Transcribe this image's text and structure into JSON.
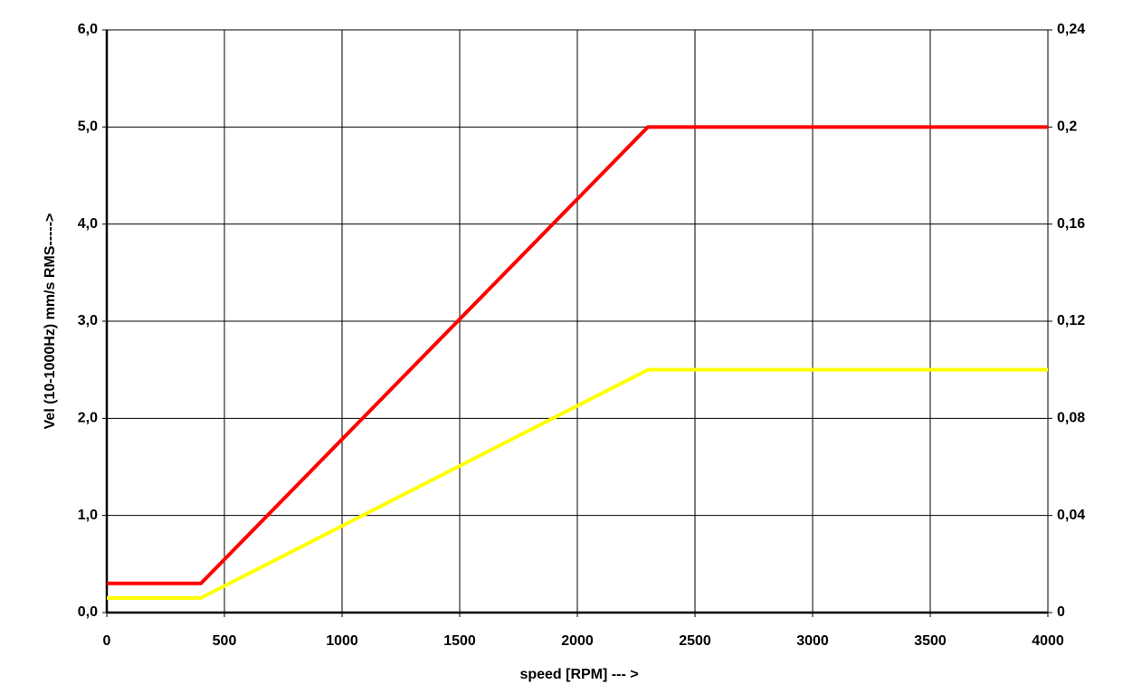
{
  "chart_data": {
    "type": "line",
    "x_label": "speed  [RPM] --- >",
    "y_label": "Vel (10-1000Hz) mm/s RMS----->",
    "x": [
      0,
      400,
      2300,
      4000
    ],
    "series": [
      {
        "color": "#ff0000",
        "values": [
          0.3,
          0.3,
          5.0,
          5.0
        ]
      },
      {
        "color": "#ffff00",
        "values": [
          0.15,
          0.15,
          2.5,
          2.5
        ]
      }
    ],
    "xlim": [
      0,
      4000
    ],
    "xticks": [
      0,
      500,
      1000,
      1500,
      2000,
      2500,
      3000,
      3500,
      4000
    ],
    "ylim": [
      0,
      6
    ],
    "yticks": [
      {
        "value": 0,
        "label": "0,0"
      },
      {
        "value": 1,
        "label": "1,0"
      },
      {
        "value": 2,
        "label": "2,0"
      },
      {
        "value": 3,
        "label": "3,0"
      },
      {
        "value": 4,
        "label": "4,0"
      },
      {
        "value": 5,
        "label": "5,0"
      },
      {
        "value": 6,
        "label": "6,0"
      }
    ],
    "y2lim": [
      0,
      0.24
    ],
    "y2ticks": [
      0,
      {
        "value": 0.04,
        "label": "0,04"
      },
      {
        "value": 0.08,
        "label": "0,08"
      },
      {
        "value": 0.12,
        "label": "0,12"
      },
      {
        "value": 0.16,
        "label": "0,16"
      },
      {
        "value": 0.2,
        "label": "0,2"
      },
      {
        "value": 0.24,
        "label": "0,24"
      }
    ],
    "grid": true
  }
}
